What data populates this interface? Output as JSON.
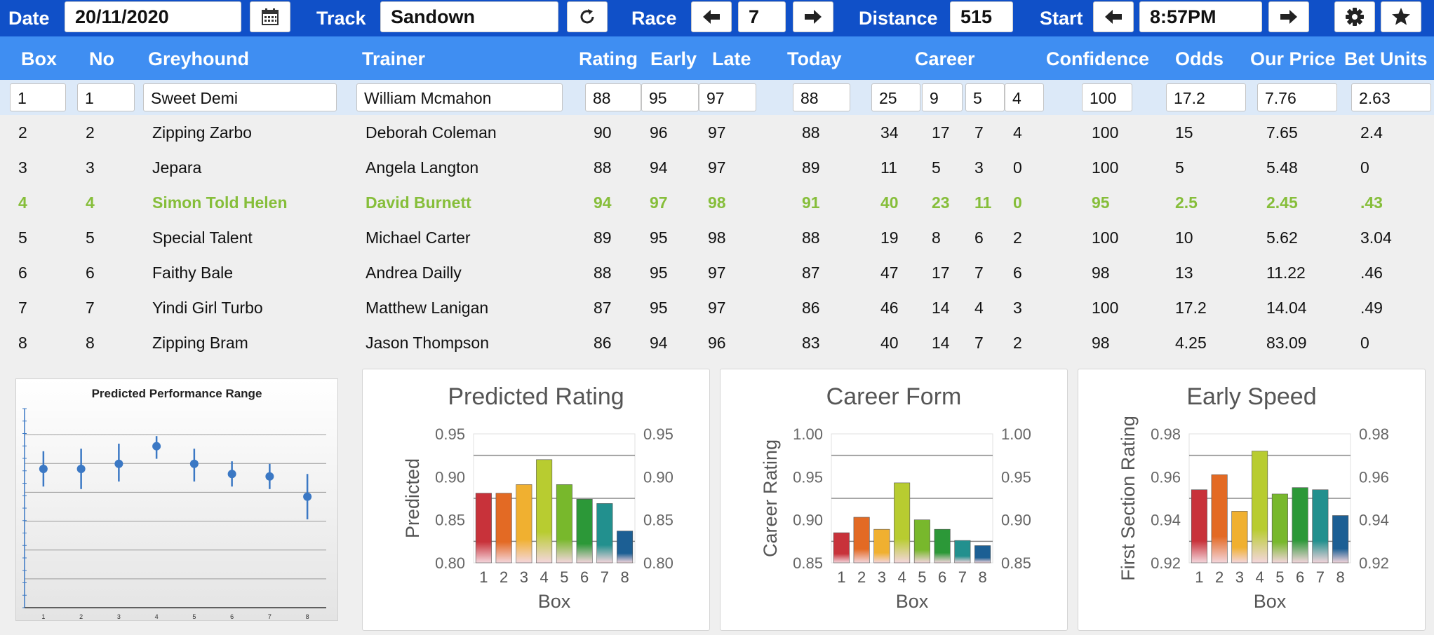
{
  "toolbar": {
    "date_label": "Date",
    "date_value": "20/11/2020",
    "track_label": "Track",
    "track_value": "Sandown",
    "race_label": "Race",
    "race_value": "7",
    "distance_label": "Distance",
    "distance_value": "515",
    "start_label": "Start",
    "start_value": "8:57PM",
    "icons": [
      "calendar-icon",
      "refresh-icon",
      "arrow-left-icon",
      "arrow-right-icon",
      "gear-icon",
      "star-icon"
    ]
  },
  "table": {
    "headers": [
      "Box",
      "No",
      "Greyhound",
      "Trainer",
      "Rating",
      "Early",
      "Late",
      "Today",
      "Career",
      "Confidence",
      "Odds",
      "Our Price",
      "Bet Units"
    ],
    "rows": [
      {
        "box": "1",
        "no": "1",
        "greyhound": "Sweet Demi",
        "trainer": "William Mcmahon",
        "rating": "88",
        "early": "95",
        "late": "97",
        "today": "88",
        "c1": "25",
        "c2": "9",
        "c3": "5",
        "c4": "4",
        "confidence": "100",
        "odds": "17.2",
        "our_price": "7.76",
        "bet_units": "2.63"
      },
      {
        "box": "2",
        "no": "2",
        "greyhound": "Zipping Zarbo",
        "trainer": "Deborah Coleman",
        "rating": "90",
        "early": "96",
        "late": "97",
        "today": "88",
        "c1": "34",
        "c2": "17",
        "c3": "7",
        "c4": "4",
        "confidence": "100",
        "odds": "15",
        "our_price": "7.65",
        "bet_units": "2.4"
      },
      {
        "box": "3",
        "no": "3",
        "greyhound": "Jepara",
        "trainer": "Angela Langton",
        "rating": "88",
        "early": "94",
        "late": "97",
        "today": "89",
        "c1": "11",
        "c2": "5",
        "c3": "3",
        "c4": "0",
        "confidence": "100",
        "odds": "5",
        "our_price": "5.48",
        "bet_units": "0"
      },
      {
        "box": "4",
        "no": "4",
        "greyhound": "Simon Told Helen",
        "trainer": "David Burnett",
        "rating": "94",
        "early": "97",
        "late": "98",
        "today": "91",
        "c1": "40",
        "c2": "23",
        "c3": "11",
        "c4": "0",
        "confidence": "95",
        "odds": "2.5",
        "our_price": "2.45",
        "bet_units": ".43"
      },
      {
        "box": "5",
        "no": "5",
        "greyhound": "Special Talent",
        "trainer": "Michael Carter",
        "rating": "89",
        "early": "95",
        "late": "98",
        "today": "88",
        "c1": "19",
        "c2": "8",
        "c3": "6",
        "c4": "2",
        "confidence": "100",
        "odds": "10",
        "our_price": "5.62",
        "bet_units": "3.04"
      },
      {
        "box": "6",
        "no": "6",
        "greyhound": "Faithy Bale",
        "trainer": "Andrea Dailly",
        "rating": "88",
        "early": "95",
        "late": "97",
        "today": "87",
        "c1": "47",
        "c2": "17",
        "c3": "7",
        "c4": "6",
        "confidence": "98",
        "odds": "13",
        "our_price": "11.22",
        "bet_units": ".46"
      },
      {
        "box": "7",
        "no": "7",
        "greyhound": "Yindi Girl Turbo",
        "trainer": "Matthew Lanigan",
        "rating": "87",
        "early": "95",
        "late": "97",
        "today": "86",
        "c1": "46",
        "c2": "14",
        "c3": "4",
        "c4": "3",
        "confidence": "100",
        "odds": "17.2",
        "our_price": "14.04",
        "bet_units": ".49"
      },
      {
        "box": "8",
        "no": "8",
        "greyhound": "Zipping Bram",
        "trainer": "Jason Thompson",
        "rating": "86",
        "early": "94",
        "late": "96",
        "today": "83",
        "c1": "40",
        "c2": "14",
        "c3": "7",
        "c4": "2",
        "confidence": "98",
        "odds": "4.25",
        "our_price": "83.09",
        "bet_units": "0"
      }
    ],
    "highlight_color": "#86be3a"
  },
  "chart_data": [
    {
      "type": "scatter",
      "title": "Predicted Performance Range",
      "x": [
        1,
        2,
        3,
        4,
        5,
        6,
        7,
        8
      ],
      "y": [
        0.55,
        0.55,
        0.57,
        0.64,
        0.57,
        0.53,
        0.52,
        0.44
      ],
      "error_low": [
        0.48,
        0.47,
        0.5,
        0.59,
        0.5,
        0.48,
        0.47,
        0.35
      ],
      "error_high": [
        0.62,
        0.63,
        0.65,
        0.68,
        0.63,
        0.58,
        0.57,
        0.53
      ],
      "ylim": [
        0,
        0.8
      ],
      "grid": true,
      "color": "#3b78c4"
    },
    {
      "type": "bar",
      "title": "Predicted Rating",
      "categories": [
        "1",
        "2",
        "3",
        "4",
        "5",
        "6",
        "7",
        "8"
      ],
      "values": [
        0.881,
        0.881,
        0.891,
        0.92,
        0.891,
        0.874,
        0.869,
        0.837
      ],
      "xlabel": "Box",
      "ylabel": "Predicted",
      "ylim": [
        0.8,
        0.95
      ],
      "yticks": [
        "0.80",
        "0.85",
        "0.90",
        "0.95"
      ],
      "grid": true
    },
    {
      "type": "bar",
      "title": "Career Form",
      "categories": [
        "1",
        "2",
        "3",
        "4",
        "5",
        "6",
        "7",
        "8"
      ],
      "values": [
        0.885,
        0.903,
        0.889,
        0.943,
        0.9,
        0.889,
        0.876,
        0.87
      ],
      "xlabel": "Box",
      "ylabel": "Career Rating",
      "ylim": [
        0.85,
        1.0
      ],
      "yticks": [
        "0.85",
        "0.90",
        "0.95",
        "1.00"
      ],
      "grid": true
    },
    {
      "type": "bar",
      "title": "Early Speed",
      "categories": [
        "1",
        "2",
        "3",
        "4",
        "5",
        "6",
        "7",
        "8"
      ],
      "values": [
        0.954,
        0.961,
        0.944,
        0.972,
        0.952,
        0.955,
        0.954,
        0.942
      ],
      "xlabel": "Box",
      "ylabel": "First Section Rating",
      "ylim": [
        0.92,
        0.98
      ],
      "yticks": [
        "0.92",
        "0.94",
        "0.96",
        "0.98"
      ],
      "grid": true
    }
  ],
  "bar_colors": [
    "#c8323a",
    "#e36a24",
    "#f0b030",
    "#b8cc30",
    "#78b82c",
    "#2c9838",
    "#22908e",
    "#1c5f94"
  ]
}
